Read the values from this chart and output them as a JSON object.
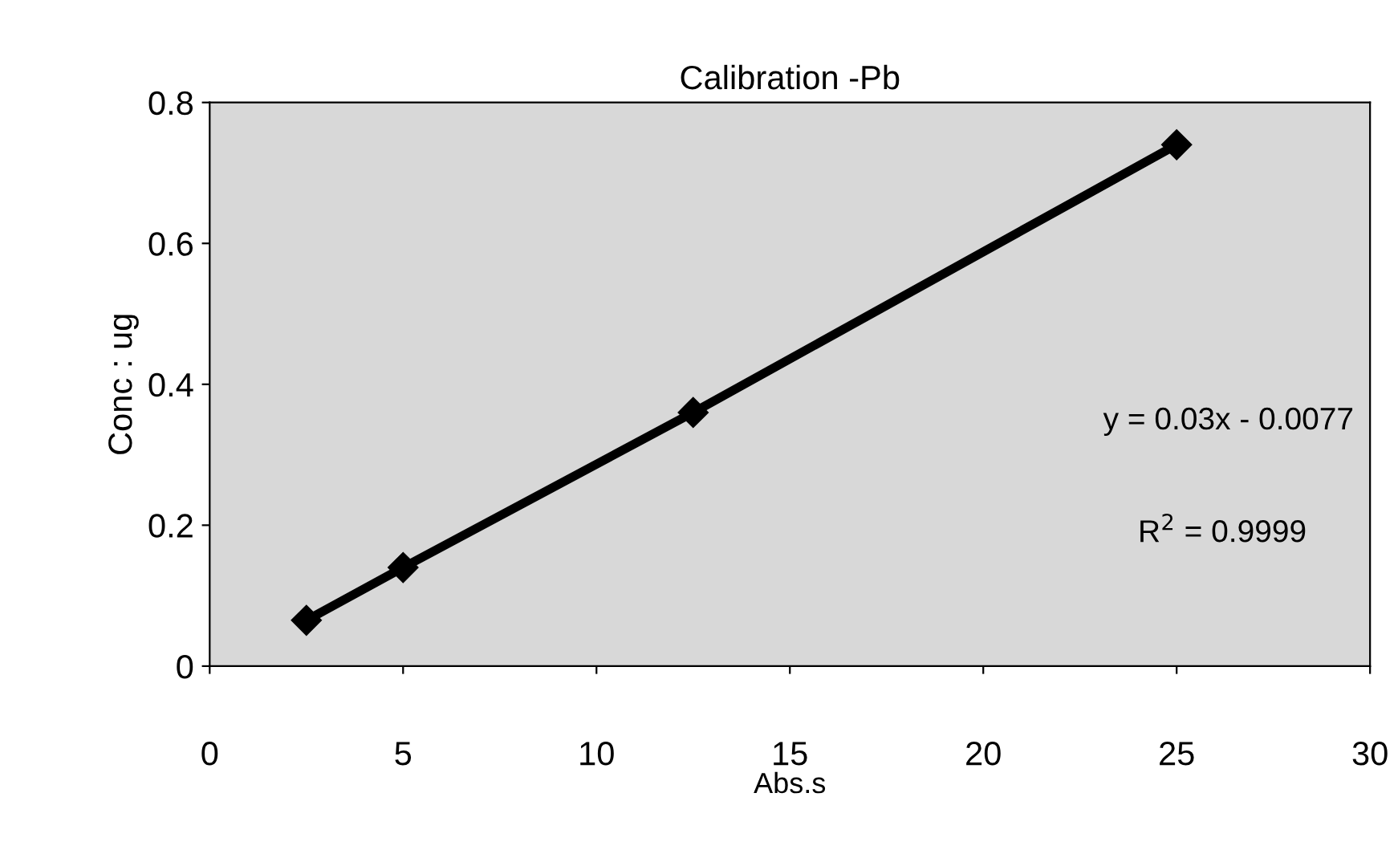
{
  "chart_data": {
    "type": "line",
    "title": "Calibration -Pb",
    "xlabel": "Abs.s",
    "ylabel": "Conc : ug",
    "x": [
      2.5,
      5,
      12.5,
      25
    ],
    "series": [
      {
        "color": "#000000",
        "values": [
          0.065,
          0.14,
          0.36,
          0.74
        ]
      }
    ],
    "xlim": [
      0,
      30
    ],
    "xticks": [
      0,
      5,
      10,
      15,
      20,
      25,
      30
    ],
    "ylim": [
      0,
      0.8
    ],
    "yticks": [
      0,
      0.2,
      0.4,
      0.6,
      0.8
    ],
    "marker": "diamond",
    "line_style": "solid",
    "grid": false,
    "legend": false,
    "annotations": [
      "y = 0.03x - 0.0077",
      "R$^{2}$ = 0.9999"
    ]
  }
}
